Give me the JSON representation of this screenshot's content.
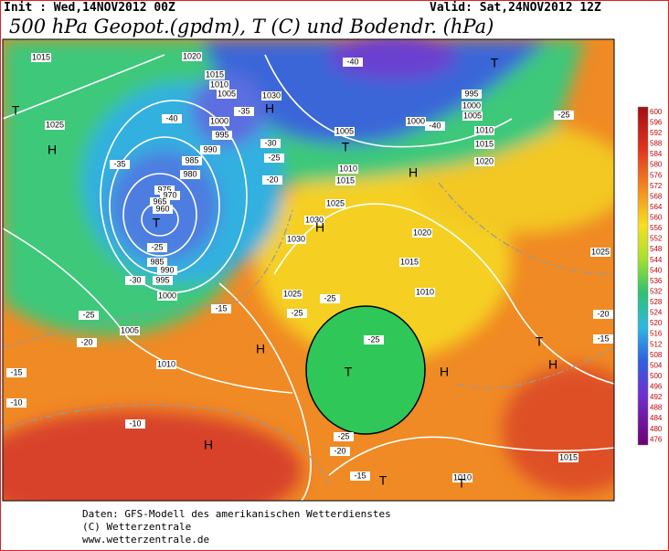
{
  "header": {
    "init": "Init : Wed,14NOV2012 00Z",
    "valid": "Valid: Sat,24NOV2012 12Z",
    "title": "500 hPa Geopot.(gpdm), T (C) und Bodendr. (hPa)"
  },
  "legend": {
    "labels": [
      600,
      596,
      592,
      588,
      584,
      580,
      576,
      572,
      568,
      564,
      560,
      556,
      552,
      548,
      544,
      540,
      536,
      532,
      528,
      524,
      520,
      516,
      512,
      508,
      504,
      500,
      496,
      492,
      488,
      484,
      480,
      476
    ]
  },
  "map": {
    "pressure_labels": [
      1015,
      1020,
      1015,
      1010,
      1005,
      1030,
      1000,
      995,
      990,
      985,
      980,
      975,
      970,
      965,
      960,
      985,
      990,
      995,
      1000,
      1005,
      1010,
      1025,
      1005,
      1000,
      995,
      1000,
      1005,
      1010,
      1015,
      1020,
      1010,
      1015,
      1025,
      1030,
      1030,
      1020,
      1015,
      1025,
      1010,
      1025,
      1015,
      1010
    ],
    "temperature_labels": [
      -40,
      -40,
      -35,
      -35,
      -30,
      -25,
      -20,
      -25,
      -30,
      -25,
      -20,
      -15,
      -10,
      -10,
      -15,
      -25,
      -25,
      -25,
      -25,
      -20,
      -15,
      -25,
      -20,
      -15,
      -40
    ],
    "centers": [
      "H",
      "H",
      "T",
      "T",
      "H",
      "T",
      "H",
      "H",
      "T",
      "H",
      "H",
      "T",
      "H",
      "T",
      "T",
      "T"
    ]
  },
  "footer": {
    "lines": [
      "Daten: GFS-Modell des amerikanischen Wetterdienstes",
      "(C) Wetterzentrale",
      "www.wetterzentrale.de"
    ]
  }
}
